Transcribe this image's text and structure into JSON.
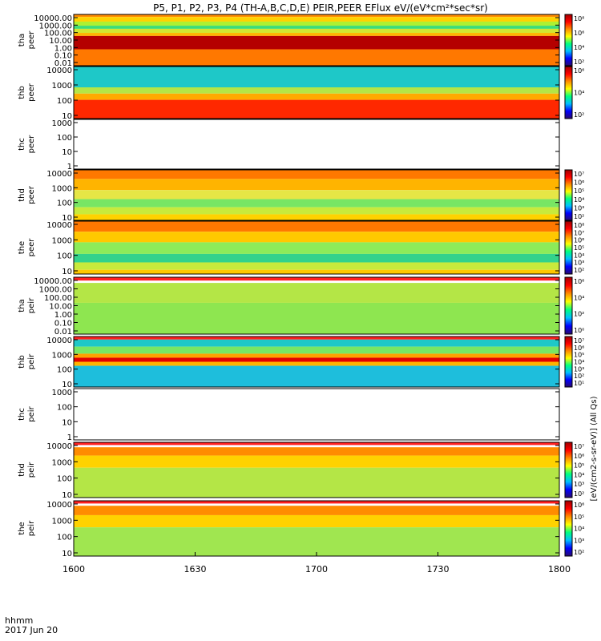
{
  "chart_data": {
    "type": "heatmap",
    "title": "P5, P1, P2, P3, P4 (TH-A,B,C,D,E) PEIR,PEER EFlux eV/(eV*cm²*sec*sr)",
    "x_axis": {
      "ticks": [
        "1600",
        "1630",
        "1700",
        "1730",
        "1800"
      ],
      "label_lines": [
        "hhmm",
        "2017 Jun 20"
      ],
      "range": [
        "16:00",
        "18:00"
      ]
    },
    "colormap": [
      "#2a0a6e",
      "#0000ff",
      "#00bfff",
      "#00ff80",
      "#ffff00",
      "#ff8c00",
      "#ff0000",
      "#a00000"
    ],
    "colorbar_unit_label": "[eV/(cm2-s-sr-eV)] (All Qs)",
    "panels": [
      {
        "probe": "tha",
        "species": "peer",
        "y_ticks": [
          "10000.00",
          "1000.00",
          "100.00",
          "10.00",
          "1.00",
          "0.10",
          "0.01"
        ],
        "colorbar_ticks": [
          "10⁸",
          "10⁶",
          "10⁴",
          "10²"
        ],
        "bands": [
          {
            "from": 0.0,
            "to": 0.05,
            "color": "#ff8c00"
          },
          {
            "from": 0.05,
            "to": 0.14,
            "color": "#ffd200"
          },
          {
            "from": 0.14,
            "to": 0.22,
            "color": "#aef032"
          },
          {
            "from": 0.22,
            "to": 0.28,
            "color": "#3cdc78"
          },
          {
            "from": 0.28,
            "to": 0.36,
            "color": "#d2e632"
          },
          {
            "from": 0.36,
            "to": 0.42,
            "color": "#ffb400"
          },
          {
            "from": 0.42,
            "to": 0.68,
            "color": "#b40000"
          },
          {
            "from": 0.68,
            "to": 1.0,
            "color": "#ff7800"
          }
        ]
      },
      {
        "probe": "thb",
        "species": "peer",
        "y_ticks": [
          "10000",
          "1000",
          "100",
          "10"
        ],
        "colorbar_ticks": [
          "10⁶",
          "10⁴",
          "10²"
        ],
        "bands": [
          {
            "from": 0.0,
            "to": 0.4,
            "color": "#1ec8c8"
          },
          {
            "from": 0.4,
            "to": 0.52,
            "color": "#b4e646"
          },
          {
            "from": 0.52,
            "to": 0.64,
            "color": "#ffaa00"
          },
          {
            "from": 0.64,
            "to": 1.0,
            "color": "#ff2800"
          }
        ]
      },
      {
        "probe": "thc",
        "species": "peer",
        "y_ticks": [
          "1000",
          "100",
          "10",
          "1"
        ],
        "colorbar_ticks": [],
        "bands": []
      },
      {
        "probe": "thd",
        "species": "peer",
        "y_ticks": [
          "10000",
          "1000",
          "100",
          "10"
        ],
        "colorbar_ticks": [
          "10⁷",
          "10⁶",
          "10⁵",
          "10⁴",
          "10³",
          "10²"
        ],
        "bands": [
          {
            "from": 0.0,
            "to": 0.18,
            "color": "#ff7800"
          },
          {
            "from": 0.18,
            "to": 0.4,
            "color": "#ffb400"
          },
          {
            "from": 0.4,
            "to": 0.58,
            "color": "#e6e646"
          },
          {
            "from": 0.58,
            "to": 0.74,
            "color": "#78e664"
          },
          {
            "from": 0.74,
            "to": 0.88,
            "color": "#c8ea3c"
          },
          {
            "from": 0.88,
            "to": 1.0,
            "color": "#ffd200"
          }
        ]
      },
      {
        "probe": "the",
        "species": "peer",
        "y_ticks": [
          "10000",
          "1000",
          "100",
          "10"
        ],
        "colorbar_ticks": [
          "10⁸",
          "10⁷",
          "10⁶",
          "10⁵",
          "10⁴",
          "10³",
          "10²"
        ],
        "bands": [
          {
            "from": 0.0,
            "to": 0.2,
            "color": "#ff7800"
          },
          {
            "from": 0.2,
            "to": 0.4,
            "color": "#ffc800"
          },
          {
            "from": 0.4,
            "to": 0.62,
            "color": "#8ceb5a"
          },
          {
            "from": 0.62,
            "to": 0.78,
            "color": "#32d28c"
          },
          {
            "from": 0.78,
            "to": 0.92,
            "color": "#c8ea3c"
          },
          {
            "from": 0.92,
            "to": 1.0,
            "color": "#ffc800"
          }
        ]
      },
      {
        "probe": "tha",
        "species": "peir",
        "y_ticks": [
          "10000.00",
          "1000.00",
          "100.00",
          "10.00",
          "1.00",
          "0.10",
          "0.01"
        ],
        "colorbar_ticks": [
          "10⁶",
          "10⁴",
          "10²",
          "10⁰"
        ],
        "bands": [
          {
            "from": 0.0,
            "to": 0.06,
            "color": "#ff2020"
          },
          {
            "from": 0.06,
            "to": 0.1,
            "color": "#ffffff"
          },
          {
            "from": 0.1,
            "to": 0.45,
            "color": "#b4e646"
          },
          {
            "from": 0.45,
            "to": 1.0,
            "color": "#8ee650"
          }
        ]
      },
      {
        "probe": "thb",
        "species": "peir",
        "y_ticks": [
          "10000",
          "1000",
          "100",
          "10"
        ],
        "colorbar_ticks": [
          "10⁷",
          "10⁶",
          "10⁵",
          "10⁴",
          "10³",
          "10²",
          "10¹"
        ],
        "bands": [
          {
            "from": 0.0,
            "to": 0.06,
            "color": "#ff2020"
          },
          {
            "from": 0.06,
            "to": 0.2,
            "color": "#1ec8c8"
          },
          {
            "from": 0.2,
            "to": 0.34,
            "color": "#78e664"
          },
          {
            "from": 0.34,
            "to": 0.42,
            "color": "#ffa000"
          },
          {
            "from": 0.42,
            "to": 0.5,
            "color": "#e10000"
          },
          {
            "from": 0.5,
            "to": 0.58,
            "color": "#ffb400"
          },
          {
            "from": 0.58,
            "to": 1.0,
            "color": "#1ebedc"
          }
        ]
      },
      {
        "probe": "thc",
        "species": "peir",
        "y_ticks": [
          "1000",
          "100",
          "10",
          "1"
        ],
        "colorbar_ticks": [],
        "bands": []
      },
      {
        "probe": "thd",
        "species": "peir",
        "y_ticks": [
          "10000",
          "1000",
          "100",
          "10"
        ],
        "colorbar_ticks": [
          "10⁷",
          "10⁶",
          "10⁵",
          "10⁴",
          "10³",
          "10²"
        ],
        "bands": [
          {
            "from": 0.0,
            "to": 0.05,
            "color": "#ff2020"
          },
          {
            "from": 0.05,
            "to": 0.09,
            "color": "#ffffff"
          },
          {
            "from": 0.09,
            "to": 0.24,
            "color": "#ff8c00"
          },
          {
            "from": 0.24,
            "to": 0.46,
            "color": "#ffd200"
          },
          {
            "from": 0.46,
            "to": 1.0,
            "color": "#b4e646"
          }
        ]
      },
      {
        "probe": "the",
        "species": "peir",
        "y_ticks": [
          "10000",
          "1000",
          "100",
          "10"
        ],
        "colorbar_ticks": [
          "10⁶",
          "10⁵",
          "10⁴",
          "10³",
          "10²"
        ],
        "bands": [
          {
            "from": 0.0,
            "to": 0.05,
            "color": "#ff2020"
          },
          {
            "from": 0.05,
            "to": 0.09,
            "color": "#ffffff"
          },
          {
            "from": 0.09,
            "to": 0.26,
            "color": "#ff8c00"
          },
          {
            "from": 0.26,
            "to": 0.48,
            "color": "#ffd200"
          },
          {
            "from": 0.48,
            "to": 1.0,
            "color": "#a0e650"
          }
        ]
      }
    ]
  }
}
